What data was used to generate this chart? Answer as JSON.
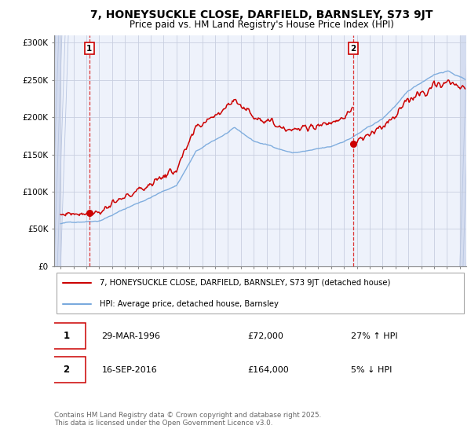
{
  "title": "7, HONEYSUCKLE CLOSE, DARFIELD, BARNSLEY, S73 9JT",
  "subtitle": "Price paid vs. HM Land Registry's House Price Index (HPI)",
  "red_label": "7, HONEYSUCKLE CLOSE, DARFIELD, BARNSLEY, S73 9JT (detached house)",
  "blue_label": "HPI: Average price, detached house, Barnsley",
  "annotation1_date": "29-MAR-1996",
  "annotation1_price": "£72,000",
  "annotation1_hpi": "27% ↑ HPI",
  "annotation2_date": "16-SEP-2016",
  "annotation2_price": "£164,000",
  "annotation2_hpi": "5% ↓ HPI",
  "copyright": "Contains HM Land Registry data © Crown copyright and database right 2025.\nThis data is licensed under the Open Government Licence v3.0.",
  "sale1_t": 1996.23,
  "sale1_p": 72000,
  "sale2_t": 2016.71,
  "sale2_p": 164000,
  "ylim": [
    0,
    310000
  ],
  "xlim_start": 1993.5,
  "xlim_end": 2025.5,
  "plot_bg": "#eef2fb",
  "hatch_bg": "#d5ddf0",
  "red_color": "#cc0000",
  "blue_color": "#7aaadd",
  "grid_color": "#c8cfe0",
  "vline_color": "#dd3333"
}
